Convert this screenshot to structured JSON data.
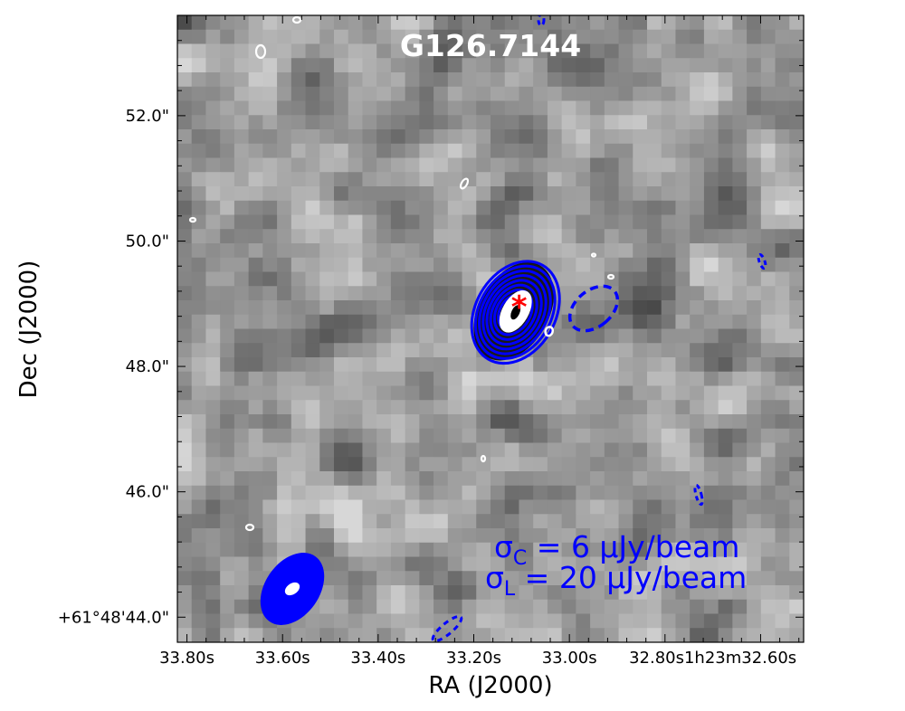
{
  "chart_data": {
    "type": "heatmap",
    "title": "G126.7144",
    "xlabel": "RA (J2000)",
    "ylabel": "Dec (J2000)",
    "x_ticks": [
      "33.80s",
      "33.60s",
      "33.40s",
      "33.20s",
      "33.00s",
      "32.80s1h23m32.60s"
    ],
    "y_ticks": [
      "52.0\"",
      "50.0\"",
      "48.0\"",
      "46.0\"",
      "+61°48'44.0\""
    ],
    "x_range_s": [
      33.82,
      32.51
    ],
    "y_range_arcsec": [
      43.6,
      53.6
    ],
    "colormap": "grayscale",
    "contours": {
      "continuum_color": "#ffffff",
      "line_positive_color": "#0000ff",
      "line_negative_color": "#0000ff",
      "line_negative_style": "dashed",
      "source_marker": "*",
      "source_marker_color": "#ff0000",
      "source_position": {
        "ra_s": 33.105,
        "dec_arcsec": 48.95
      }
    },
    "beam": {
      "fill_color": "#0000ff",
      "inner_color": "#ffffff"
    },
    "annotation": {
      "sigma_c": "6 μJy/beam",
      "sigma_l": "20 μJy/beam",
      "color": "#0000ff"
    }
  }
}
